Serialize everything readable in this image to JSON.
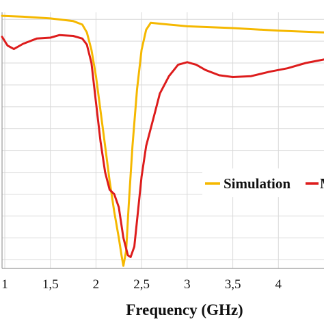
{
  "chart_data": {
    "type": "line",
    "xlabel": "Frequency (GHz)",
    "xlim": [
      0.97,
      4.5
    ],
    "ylim": [
      -28.5,
      0.8
    ],
    "x_ticks": [
      1,
      1.5,
      2,
      2.5,
      3,
      3.5,
      4
    ],
    "x_tick_labels": [
      "1",
      "1,5",
      "2",
      "2,5",
      "3",
      "3,5",
      "4"
    ],
    "y_gridlines": [
      0,
      -2.5,
      -5,
      -7.5,
      -10,
      -12.5,
      -15,
      -17.5,
      -20,
      -22.5,
      -25,
      -27.5
    ],
    "grid": true,
    "legend_position": "right",
    "series": [
      {
        "name": "Simulation",
        "color": "#f5b800",
        "points": [
          [
            0.97,
            0.4
          ],
          [
            1.2,
            0.3
          ],
          [
            1.5,
            0.1
          ],
          [
            1.75,
            -0.2
          ],
          [
            1.85,
            -0.6
          ],
          [
            1.9,
            -1.5
          ],
          [
            1.95,
            -3.5
          ],
          [
            2.0,
            -6.5
          ],
          [
            2.05,
            -10.5
          ],
          [
            2.1,
            -14.5
          ],
          [
            2.15,
            -18.5
          ],
          [
            2.2,
            -22.0
          ],
          [
            2.25,
            -25.0
          ],
          [
            2.28,
            -27.0
          ],
          [
            2.3,
            -28.2
          ],
          [
            2.33,
            -26.5
          ],
          [
            2.36,
            -21.0
          ],
          [
            2.4,
            -14.5
          ],
          [
            2.45,
            -8.0
          ],
          [
            2.5,
            -3.5
          ],
          [
            2.55,
            -1.2
          ],
          [
            2.6,
            -0.4
          ],
          [
            2.7,
            -0.5
          ],
          [
            3.0,
            -0.8
          ],
          [
            3.5,
            -1.0
          ],
          [
            4.0,
            -1.3
          ],
          [
            4.5,
            -1.5
          ]
        ]
      },
      {
        "name": "Measurement",
        "color": "#dd1c1c",
        "points": [
          [
            0.97,
            -2.0
          ],
          [
            1.03,
            -3.0
          ],
          [
            1.1,
            -3.4
          ],
          [
            1.2,
            -2.8
          ],
          [
            1.35,
            -2.2
          ],
          [
            1.5,
            -2.1
          ],
          [
            1.6,
            -1.8
          ],
          [
            1.75,
            -1.9
          ],
          [
            1.85,
            -2.2
          ],
          [
            1.9,
            -2.9
          ],
          [
            1.95,
            -5.0
          ],
          [
            2.0,
            -9.5
          ],
          [
            2.05,
            -14.0
          ],
          [
            2.1,
            -17.5
          ],
          [
            2.15,
            -19.5
          ],
          [
            2.2,
            -20.0
          ],
          [
            2.25,
            -21.5
          ],
          [
            2.3,
            -25.0
          ],
          [
            2.35,
            -27.0
          ],
          [
            2.38,
            -27.2
          ],
          [
            2.42,
            -26.0
          ],
          [
            2.45,
            -23.0
          ],
          [
            2.5,
            -18.0
          ],
          [
            2.55,
            -14.5
          ],
          [
            2.6,
            -12.5
          ],
          [
            2.65,
            -10.5
          ],
          [
            2.7,
            -8.5
          ],
          [
            2.8,
            -6.5
          ],
          [
            2.9,
            -5.2
          ],
          [
            3.0,
            -4.9
          ],
          [
            3.1,
            -5.2
          ],
          [
            3.2,
            -5.8
          ],
          [
            3.35,
            -6.4
          ],
          [
            3.5,
            -6.6
          ],
          [
            3.7,
            -6.5
          ],
          [
            3.9,
            -6.0
          ],
          [
            4.1,
            -5.6
          ],
          [
            4.3,
            -5.0
          ],
          [
            4.5,
            -4.6
          ]
        ]
      }
    ],
    "legend_labels": [
      "Simulation",
      "M"
    ]
  }
}
